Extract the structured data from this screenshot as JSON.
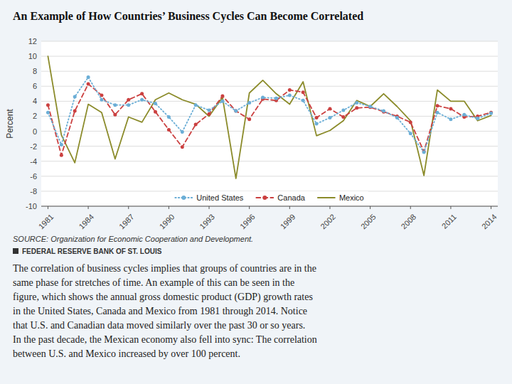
{
  "chart_data": {
    "type": "line",
    "title": "An Example of How Countries’ Business Cycles Can Become Correlated",
    "y_label": "Percent",
    "annotations": [
      "SOURCE: Organization for Economic Cooperation and Development.",
      "FEDERAL RESERVE BANK OF ST. LOUIS",
      "The correlation of business cycles implies that groups of countries are in the\nsame phase for stretches of time. An example of this can be seen in the\nfigure, which shows the annual gross domestic product (GDP) growth rates\nin the United States, Canada and Mexico from 1981 through 2014. Notice\nthat U.S. and Canadian data moved similarly over the past 30 or so years.\nIn the past decade, the Mexican economy also fell into sync: The correlation\nbetween U.S. and Mexico increased by over 100 percent."
    ],
    "x": [
      1981,
      1982,
      1983,
      1984,
      1985,
      1986,
      1987,
      1988,
      1989,
      1990,
      1991,
      1992,
      1993,
      1994,
      1995,
      1996,
      1997,
      1998,
      1999,
      2000,
      2001,
      2002,
      2003,
      2004,
      2005,
      2006,
      2007,
      2008,
      2009,
      2010,
      2011,
      2012,
      2013,
      2014
    ],
    "series": [
      {
        "name": "United States",
        "color": "#6baed6",
        "line_style": "dotted",
        "marker": "circle",
        "values": [
          2.5,
          -1.8,
          4.6,
          7.2,
          4.2,
          3.5,
          3.5,
          4.2,
          3.7,
          1.9,
          -0.1,
          3.5,
          2.8,
          4.0,
          2.7,
          3.8,
          4.5,
          4.4,
          4.8,
          4.1,
          1.0,
          1.8,
          2.8,
          3.8,
          3.3,
          2.7,
          1.8,
          -0.3,
          -2.8,
          2.5,
          1.6,
          2.2,
          1.7,
          2.4
        ]
      },
      {
        "name": "Canada",
        "color": "#cb4040",
        "line_style": "dashed",
        "marker": "circle",
        "values": [
          3.5,
          -3.2,
          2.7,
          6.3,
          4.8,
          2.2,
          4.2,
          5.0,
          2.6,
          0.2,
          -2.1,
          0.9,
          2.3,
          4.7,
          2.7,
          1.6,
          4.3,
          4.1,
          5.5,
          5.2,
          1.8,
          3.0,
          1.9,
          3.1,
          3.2,
          2.6,
          2.0,
          1.2,
          -2.7,
          3.4,
          3.0,
          1.9,
          2.0,
          2.5
        ]
      },
      {
        "name": "Mexico",
        "color": "#8b8b2a",
        "line_style": "solid",
        "values": [
          10.0,
          -0.5,
          -4.2,
          3.6,
          2.5,
          -3.7,
          1.9,
          1.2,
          4.2,
          5.1,
          4.2,
          3.6,
          2.0,
          4.5,
          -6.3,
          5.1,
          6.8,
          5.0,
          3.6,
          6.6,
          -0.6,
          0.1,
          1.4,
          4.1,
          3.3,
          5.0,
          3.3,
          1.4,
          -5.9,
          5.5,
          4.0,
          4.0,
          1.4,
          2.1
        ]
      }
    ],
    "xlim": [
      1980.5,
      2014.5
    ],
    "xticks": [
      1981,
      1984,
      1987,
      1990,
      1993,
      1996,
      1999,
      2002,
      2005,
      2008,
      2011,
      2014
    ],
    "ylim": [
      -10,
      12
    ],
    "yticks": [
      -10,
      -8,
      -6,
      -4,
      -2,
      0,
      2,
      4,
      6,
      8,
      10,
      12
    ],
    "grid": true,
    "legend": "bottom"
  }
}
